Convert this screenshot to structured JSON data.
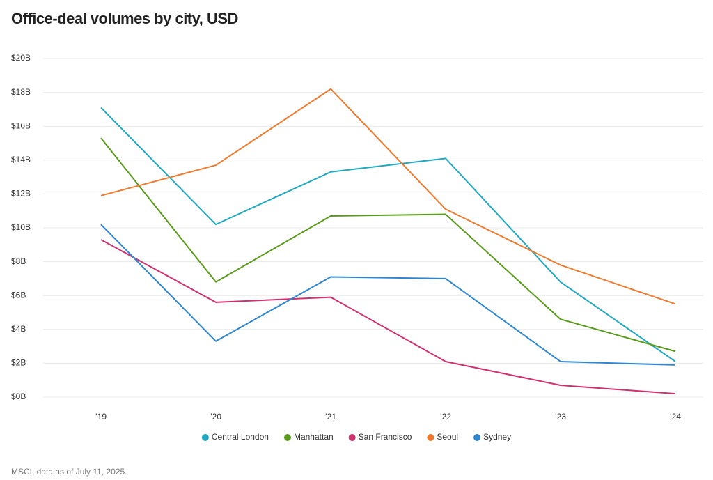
{
  "chart_data": {
    "type": "line",
    "title": "Office-deal volumes by city, USD",
    "categories": [
      "’19",
      "’20",
      "’21",
      "’22",
      "’23",
      "’24"
    ],
    "series": [
      {
        "name": "Central London",
        "color": "#1fa8bf",
        "values": [
          17.1,
          10.2,
          13.3,
          14.1,
          6.8,
          2.1
        ]
      },
      {
        "name": "Manhattan",
        "color": "#5a9a1a",
        "values": [
          15.3,
          6.8,
          10.7,
          10.8,
          4.6,
          2.7
        ]
      },
      {
        "name": "San Francisco",
        "color": "#d0306e",
        "values": [
          9.3,
          5.6,
          5.9,
          2.1,
          0.7,
          0.2
        ]
      },
      {
        "name": "Seoul",
        "color": "#ef7a2e",
        "values": [
          11.9,
          13.7,
          18.2,
          11.1,
          7.8,
          5.5
        ]
      },
      {
        "name": "Sydney",
        "color": "#2e86d0",
        "values": [
          10.2,
          3.3,
          7.1,
          7.0,
          2.1,
          1.9
        ]
      }
    ],
    "ylim": [
      0,
      20
    ],
    "yticks": [
      {
        "value": 0,
        "label": "$0B"
      },
      {
        "value": 2,
        "label": "$2B"
      },
      {
        "value": 4,
        "label": "$4B"
      },
      {
        "value": 6,
        "label": "$6B"
      },
      {
        "value": 8,
        "label": "$8B"
      },
      {
        "value": 10,
        "label": "$10B"
      },
      {
        "value": 12,
        "label": "$12B"
      },
      {
        "value": 14,
        "label": "$14B"
      },
      {
        "value": 16,
        "label": "$16B"
      },
      {
        "value": 18,
        "label": "$18B"
      },
      {
        "value": 20,
        "label": "$20B"
      }
    ],
    "grid": true,
    "legend": "bottom",
    "source": "MSCI, data as of July 11, 2025."
  }
}
